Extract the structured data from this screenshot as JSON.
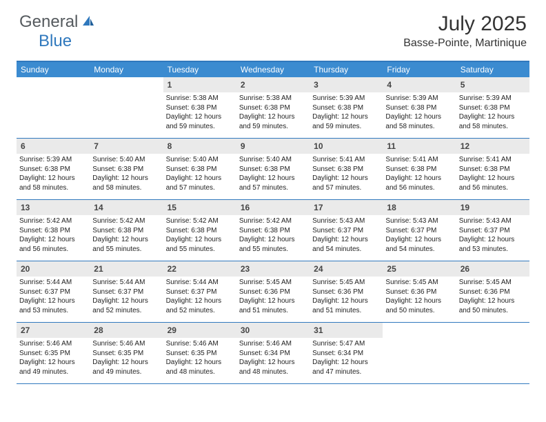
{
  "logo": {
    "text1": "General",
    "text2": "Blue"
  },
  "title": "July 2025",
  "location": "Basse-Pointe, Martinique",
  "colors": {
    "header_bg": "#3b8bd0",
    "border": "#2f78bd",
    "daynum_bg": "#eaeaea",
    "text": "#222222",
    "logo_gray": "#555a5e",
    "logo_blue": "#2f78bd"
  },
  "day_names": [
    "Sunday",
    "Monday",
    "Tuesday",
    "Wednesday",
    "Thursday",
    "Friday",
    "Saturday"
  ],
  "weeks": [
    [
      {
        "empty": true
      },
      {
        "empty": true
      },
      {
        "n": "1",
        "sr": "5:38 AM",
        "ss": "6:38 PM",
        "dl": "12 hours and 59 minutes."
      },
      {
        "n": "2",
        "sr": "5:38 AM",
        "ss": "6:38 PM",
        "dl": "12 hours and 59 minutes."
      },
      {
        "n": "3",
        "sr": "5:39 AM",
        "ss": "6:38 PM",
        "dl": "12 hours and 59 minutes."
      },
      {
        "n": "4",
        "sr": "5:39 AM",
        "ss": "6:38 PM",
        "dl": "12 hours and 58 minutes."
      },
      {
        "n": "5",
        "sr": "5:39 AM",
        "ss": "6:38 PM",
        "dl": "12 hours and 58 minutes."
      }
    ],
    [
      {
        "n": "6",
        "sr": "5:39 AM",
        "ss": "6:38 PM",
        "dl": "12 hours and 58 minutes."
      },
      {
        "n": "7",
        "sr": "5:40 AM",
        "ss": "6:38 PM",
        "dl": "12 hours and 58 minutes."
      },
      {
        "n": "8",
        "sr": "5:40 AM",
        "ss": "6:38 PM",
        "dl": "12 hours and 57 minutes."
      },
      {
        "n": "9",
        "sr": "5:40 AM",
        "ss": "6:38 PM",
        "dl": "12 hours and 57 minutes."
      },
      {
        "n": "10",
        "sr": "5:41 AM",
        "ss": "6:38 PM",
        "dl": "12 hours and 57 minutes."
      },
      {
        "n": "11",
        "sr": "5:41 AM",
        "ss": "6:38 PM",
        "dl": "12 hours and 56 minutes."
      },
      {
        "n": "12",
        "sr": "5:41 AM",
        "ss": "6:38 PM",
        "dl": "12 hours and 56 minutes."
      }
    ],
    [
      {
        "n": "13",
        "sr": "5:42 AM",
        "ss": "6:38 PM",
        "dl": "12 hours and 56 minutes."
      },
      {
        "n": "14",
        "sr": "5:42 AM",
        "ss": "6:38 PM",
        "dl": "12 hours and 55 minutes."
      },
      {
        "n": "15",
        "sr": "5:42 AM",
        "ss": "6:38 PM",
        "dl": "12 hours and 55 minutes."
      },
      {
        "n": "16",
        "sr": "5:42 AM",
        "ss": "6:38 PM",
        "dl": "12 hours and 55 minutes."
      },
      {
        "n": "17",
        "sr": "5:43 AM",
        "ss": "6:37 PM",
        "dl": "12 hours and 54 minutes."
      },
      {
        "n": "18",
        "sr": "5:43 AM",
        "ss": "6:37 PM",
        "dl": "12 hours and 54 minutes."
      },
      {
        "n": "19",
        "sr": "5:43 AM",
        "ss": "6:37 PM",
        "dl": "12 hours and 53 minutes."
      }
    ],
    [
      {
        "n": "20",
        "sr": "5:44 AM",
        "ss": "6:37 PM",
        "dl": "12 hours and 53 minutes."
      },
      {
        "n": "21",
        "sr": "5:44 AM",
        "ss": "6:37 PM",
        "dl": "12 hours and 52 minutes."
      },
      {
        "n": "22",
        "sr": "5:44 AM",
        "ss": "6:37 PM",
        "dl": "12 hours and 52 minutes."
      },
      {
        "n": "23",
        "sr": "5:45 AM",
        "ss": "6:36 PM",
        "dl": "12 hours and 51 minutes."
      },
      {
        "n": "24",
        "sr": "5:45 AM",
        "ss": "6:36 PM",
        "dl": "12 hours and 51 minutes."
      },
      {
        "n": "25",
        "sr": "5:45 AM",
        "ss": "6:36 PM",
        "dl": "12 hours and 50 minutes."
      },
      {
        "n": "26",
        "sr": "5:45 AM",
        "ss": "6:36 PM",
        "dl": "12 hours and 50 minutes."
      }
    ],
    [
      {
        "n": "27",
        "sr": "5:46 AM",
        "ss": "6:35 PM",
        "dl": "12 hours and 49 minutes."
      },
      {
        "n": "28",
        "sr": "5:46 AM",
        "ss": "6:35 PM",
        "dl": "12 hours and 49 minutes."
      },
      {
        "n": "29",
        "sr": "5:46 AM",
        "ss": "6:35 PM",
        "dl": "12 hours and 48 minutes."
      },
      {
        "n": "30",
        "sr": "5:46 AM",
        "ss": "6:34 PM",
        "dl": "12 hours and 48 minutes."
      },
      {
        "n": "31",
        "sr": "5:47 AM",
        "ss": "6:34 PM",
        "dl": "12 hours and 47 minutes."
      },
      {
        "empty": true
      },
      {
        "empty": true
      }
    ]
  ],
  "labels": {
    "sunrise": "Sunrise:",
    "sunset": "Sunset:",
    "daylight": "Daylight:"
  }
}
